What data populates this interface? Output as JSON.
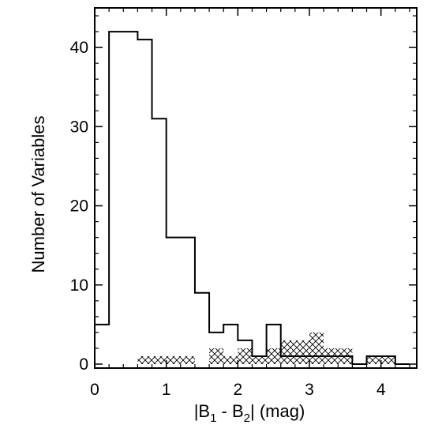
{
  "chart_data": {
    "type": "histogram",
    "title": "",
    "xlabel": {
      "prefix": "|B",
      "sub1": "1",
      "mid": " - B",
      "sub2": "2",
      "suffix": "| (mag)"
    },
    "ylabel": "Number of Variables",
    "xlim": [
      0,
      4.5
    ],
    "ylim": [
      -0.5,
      45
    ],
    "x_ticks": [
      0,
      1,
      2,
      3,
      4
    ],
    "y_ticks": [
      0,
      10,
      20,
      30,
      40
    ],
    "grid": false,
    "legend": "none",
    "series": [
      {
        "style": "outline",
        "color": "#000000",
        "bin_width": 0.2,
        "bins": [
          {
            "x0": 0.0,
            "x1": 0.2,
            "value": 5
          },
          {
            "x0": 0.2,
            "x1": 0.4,
            "value": 42
          },
          {
            "x0": 0.4,
            "x1": 0.6,
            "value": 42
          },
          {
            "x0": 0.6,
            "x1": 0.8,
            "value": 41
          },
          {
            "x0": 0.8,
            "x1": 1.0,
            "value": 31
          },
          {
            "x0": 1.0,
            "x1": 1.2,
            "value": 16
          },
          {
            "x0": 1.2,
            "x1": 1.4,
            "value": 16
          },
          {
            "x0": 1.4,
            "x1": 1.6,
            "value": 9
          },
          {
            "x0": 1.6,
            "x1": 1.8,
            "value": 4
          },
          {
            "x0": 1.8,
            "x1": 2.0,
            "value": 5
          },
          {
            "x0": 2.0,
            "x1": 2.2,
            "value": 3
          },
          {
            "x0": 2.2,
            "x1": 2.4,
            "value": 1
          },
          {
            "x0": 2.4,
            "x1": 2.6,
            "value": 5
          },
          {
            "x0": 2.6,
            "x1": 2.8,
            "value": 1
          },
          {
            "x0": 2.8,
            "x1": 3.0,
            "value": 1
          },
          {
            "x0": 3.0,
            "x1": 3.2,
            "value": 1
          },
          {
            "x0": 3.2,
            "x1": 3.4,
            "value": 1
          },
          {
            "x0": 3.4,
            "x1": 3.6,
            "value": 1
          },
          {
            "x0": 3.6,
            "x1": 3.8,
            "value": 0
          },
          {
            "x0": 3.8,
            "x1": 4.0,
            "value": 1
          },
          {
            "x0": 4.0,
            "x1": 4.2,
            "value": 1
          },
          {
            "x0": 4.2,
            "x1": 4.4,
            "value": 0
          }
        ]
      },
      {
        "style": "crosshatch",
        "color": "#000000",
        "bin_width": 0.2,
        "bins": [
          {
            "x0": 0.6,
            "x1": 0.8,
            "value": 1
          },
          {
            "x0": 0.8,
            "x1": 1.0,
            "value": 1
          },
          {
            "x0": 1.0,
            "x1": 1.2,
            "value": 1
          },
          {
            "x0": 1.2,
            "x1": 1.4,
            "value": 1
          },
          {
            "x0": 1.6,
            "x1": 1.8,
            "value": 2
          },
          {
            "x0": 1.8,
            "x1": 2.0,
            "value": 1
          },
          {
            "x0": 2.0,
            "x1": 2.2,
            "value": 2
          },
          {
            "x0": 2.2,
            "x1": 2.4,
            "value": 1
          },
          {
            "x0": 2.4,
            "x1": 2.6,
            "value": 2
          },
          {
            "x0": 2.6,
            "x1": 2.8,
            "value": 3
          },
          {
            "x0": 2.8,
            "x1": 3.0,
            "value": 3
          },
          {
            "x0": 3.0,
            "x1": 3.2,
            "value": 4
          },
          {
            "x0": 3.2,
            "x1": 3.4,
            "value": 2
          },
          {
            "x0": 3.4,
            "x1": 3.6,
            "value": 2
          },
          {
            "x0": 3.8,
            "x1": 4.0,
            "value": 1
          },
          {
            "x0": 4.0,
            "x1": 4.2,
            "value": 1
          }
        ]
      }
    ]
  }
}
